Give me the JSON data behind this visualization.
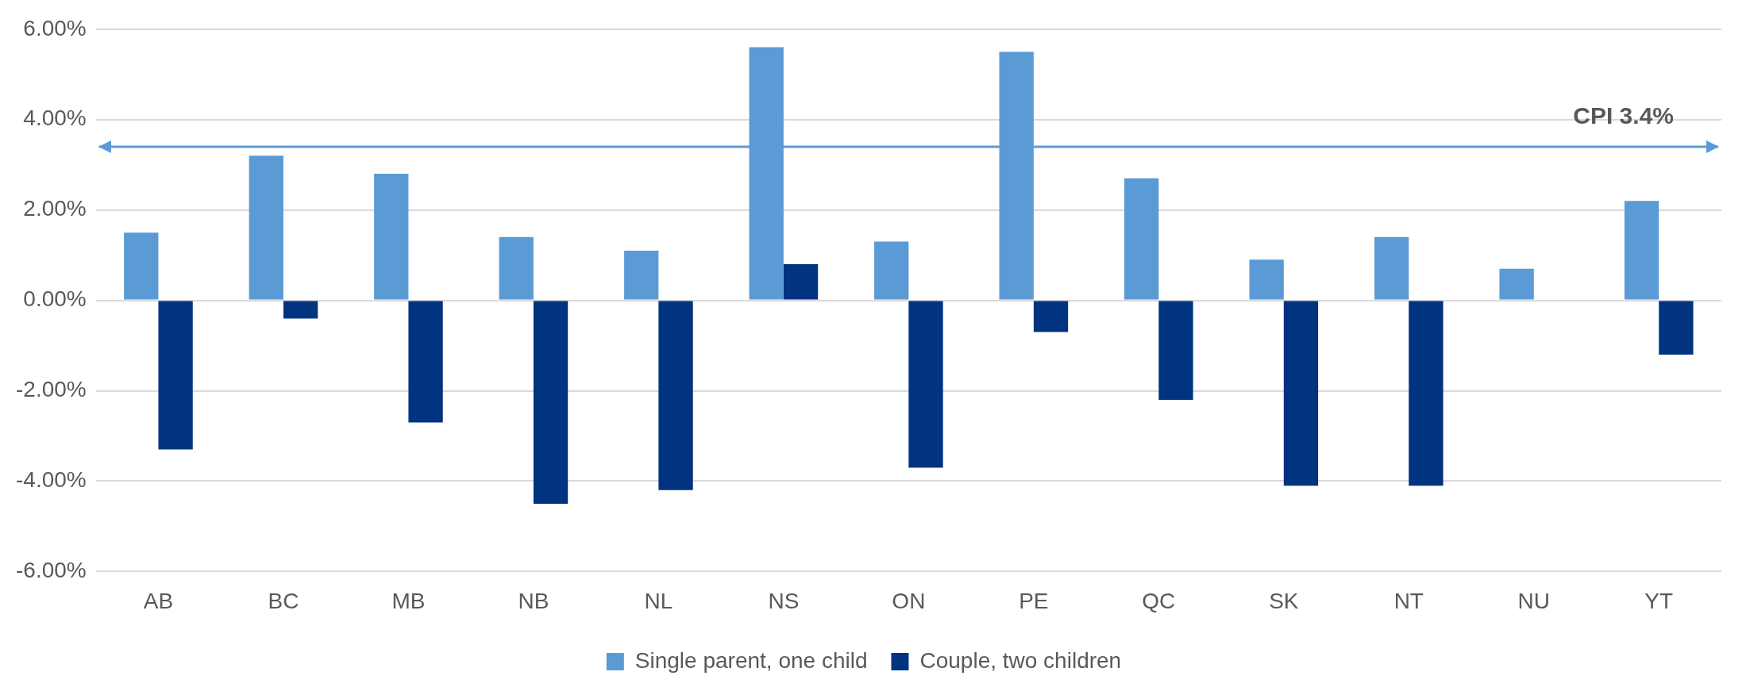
{
  "chart_data": {
    "type": "bar",
    "categories": [
      "AB",
      "BC",
      "MB",
      "NB",
      "NL",
      "NS",
      "ON",
      "PE",
      "QC",
      "SK",
      "NT",
      "NU",
      "YT"
    ],
    "series": [
      {
        "name": "Single parent, one child",
        "color": "#5b9bd5",
        "values": [
          1.5,
          3.2,
          2.8,
          1.4,
          1.1,
          5.6,
          1.3,
          5.5,
          2.7,
          0.9,
          1.4,
          0.7,
          2.2
        ]
      },
      {
        "name": "Couple, two children",
        "color": "#003380",
        "values": [
          -3.3,
          -0.4,
          -2.7,
          -4.5,
          -4.2,
          0.8,
          -3.7,
          -0.7,
          -2.2,
          -4.1,
          -4.1,
          null,
          -1.2
        ]
      }
    ],
    "ylim": [
      -6,
      6
    ],
    "yticks": [
      {
        "value": -6,
        "label": "-6.00%"
      },
      {
        "value": -4,
        "label": "-4.00%"
      },
      {
        "value": -2,
        "label": "-2.00%"
      },
      {
        "value": 0,
        "label": "0.00%"
      },
      {
        "value": 2,
        "label": "2.00%"
      },
      {
        "value": 4,
        "label": "4.00%"
      },
      {
        "value": 6,
        "label": "6.00%"
      }
    ],
    "grid": "y",
    "legend": "bottom",
    "ref_lines": [
      {
        "axis": "y",
        "value": 3.4,
        "label": "CPI 3.4%",
        "color": "#5b9bd5"
      }
    ]
  }
}
